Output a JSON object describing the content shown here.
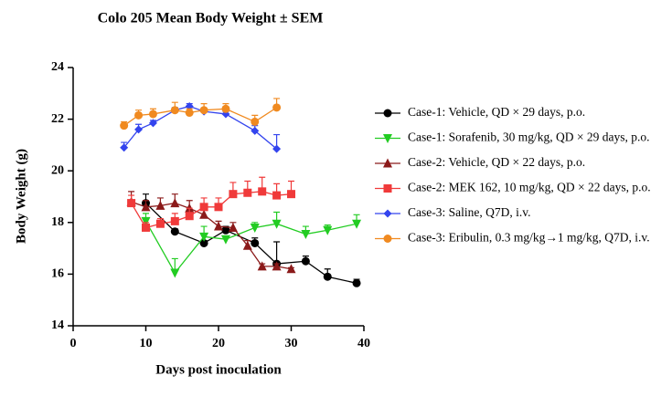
{
  "chart_data": {
    "type": "line",
    "title": "Colo 205 Mean Body Weight ± SEM",
    "xlabel": "Days post inoculation",
    "ylabel": "Body Weight (g)",
    "xlim": [
      0,
      40
    ],
    "xticks": [
      0,
      10,
      20,
      30,
      40
    ],
    "ylim": [
      14,
      24
    ],
    "yticks": [
      14,
      16,
      18,
      20,
      22,
      24
    ],
    "series": [
      {
        "name": "Case-1: Vehicle, QD × 29 days, p.o.",
        "color": "#000000",
        "marker": "circle",
        "x": [
          10,
          14,
          18,
          21,
          25,
          28,
          32,
          35,
          39
        ],
        "values": [
          18.75,
          17.65,
          17.2,
          17.7,
          17.2,
          16.4,
          16.5,
          15.9,
          15.65
        ],
        "errors": [
          0.35,
          0.1,
          0.1,
          0.15,
          0.2,
          0.85,
          0.2,
          0.3,
          0.15
        ]
      },
      {
        "name": "Case-1: Sorafenib, 30 mg/kg, QD × 29 days, p.o.",
        "color": "#22cc22",
        "marker": "triangle-down",
        "x": [
          10,
          14,
          18,
          21,
          25,
          28,
          32,
          35,
          39
        ],
        "values": [
          18.05,
          16.05,
          17.45,
          17.35,
          17.8,
          17.95,
          17.55,
          17.7,
          17.95
        ],
        "errors": [
          0.3,
          0.55,
          0.4,
          0.1,
          0.2,
          0.45,
          0.3,
          0.2,
          0.35
        ]
      },
      {
        "name": "Case-2: Vehicle, QD × 22 days, p.o.",
        "color": "#8b1a1a",
        "marker": "triangle-up",
        "x": [
          8,
          10,
          12,
          14,
          16,
          18,
          20,
          22,
          24,
          26,
          28,
          30
        ],
        "values": [
          18.8,
          18.6,
          18.65,
          18.75,
          18.55,
          18.3,
          17.85,
          17.8,
          17.1,
          16.3,
          16.3,
          16.2
        ],
        "errors": [
          0.4,
          0.25,
          0.3,
          0.35,
          0.3,
          0.3,
          0.2,
          0.2,
          0.2,
          0.1,
          0.1,
          0.05
        ]
      },
      {
        "name": "Case-2: MEK 162, 10 mg/kg, QD × 22 days, p.o.",
        "color": "#f03a3a",
        "marker": "square",
        "x": [
          8,
          10,
          12,
          14,
          16,
          18,
          20,
          22,
          24,
          26,
          28,
          30
        ],
        "values": [
          18.75,
          17.8,
          17.95,
          18.05,
          18.25,
          18.6,
          18.6,
          19.1,
          19.15,
          19.2,
          19.05,
          19.1
        ],
        "errors": [
          0.3,
          0.2,
          0.2,
          0.3,
          0.3,
          0.35,
          0.35,
          0.45,
          0.45,
          0.55,
          0.45,
          0.5
        ]
      },
      {
        "name": "Case-3: Saline, Q7D, i.v.",
        "color": "#3344ee",
        "marker": "diamond",
        "x": [
          7,
          9,
          11,
          14,
          16,
          18,
          21,
          25,
          28
        ],
        "values": [
          20.9,
          21.6,
          21.85,
          22.35,
          22.5,
          22.3,
          22.2,
          21.55,
          20.85
        ],
        "errors": [
          0.2,
          0.2,
          0.1,
          0.1,
          0.1,
          0.1,
          0.1,
          0.2,
          0.55
        ]
      },
      {
        "name": "Case-3: Eribulin, 0.3 mg/kg→1 mg/kg, Q7D, i.v.",
        "color": "#f08a20",
        "marker": "circle",
        "x": [
          7,
          9,
          11,
          14,
          16,
          18,
          21,
          25,
          28
        ],
        "values": [
          21.75,
          22.15,
          22.2,
          22.35,
          22.25,
          22.35,
          22.4,
          21.9,
          22.45
        ],
        "errors": [
          0.15,
          0.2,
          0.2,
          0.3,
          0.15,
          0.25,
          0.2,
          0.25,
          0.35
        ]
      }
    ]
  }
}
